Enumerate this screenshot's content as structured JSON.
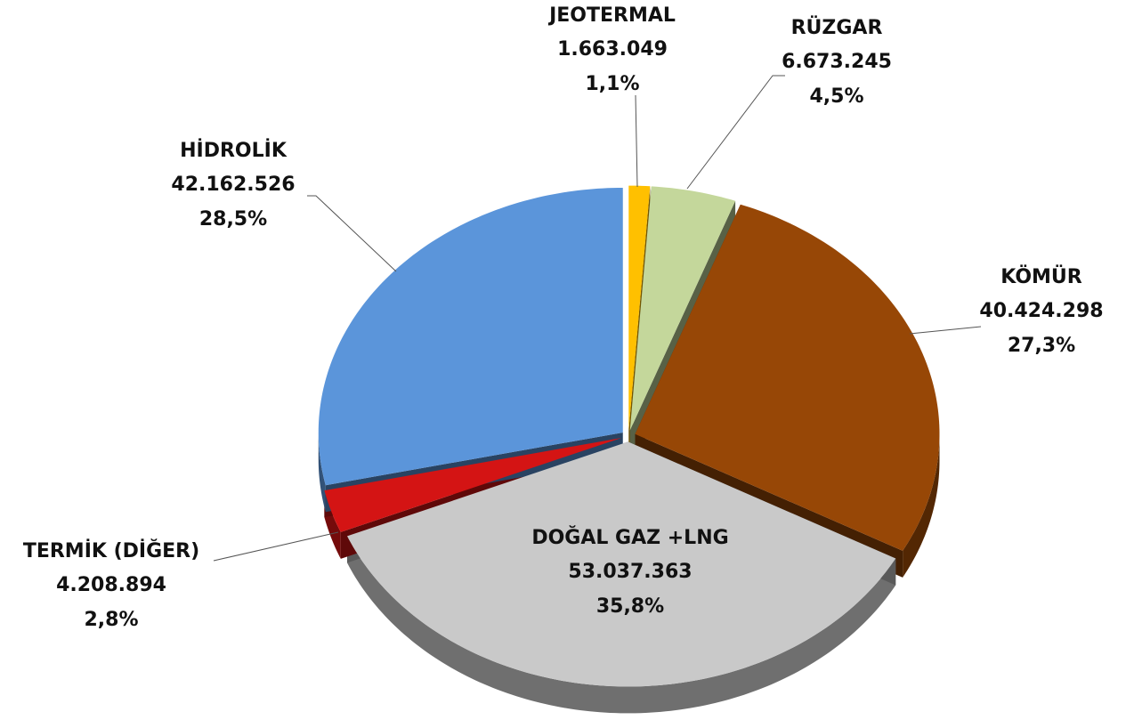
{
  "chart_data": {
    "type": "pie3d",
    "categories": [
      "JEOTERMAL",
      "RÜZGAR",
      "KÖMÜR",
      "DOĞAL GAZ +LNG",
      "TERMİK (DİĞER)",
      "HİDROLİK"
    ],
    "values": [
      1663049,
      6673245,
      40424298,
      53037363,
      4208894,
      42162526
    ],
    "value_labels": [
      "1.663.049",
      "6.673.245",
      "40.424.298",
      "53.037.363",
      "4.208.894",
      "42.162.526"
    ],
    "percent_labels": [
      "1,1%",
      "4,5%",
      "27,3%",
      "35,8%",
      "2,8%",
      "28,5%"
    ],
    "colors": [
      "#ffc000",
      "#c4d79b",
      "#974706",
      "#c9c9c9",
      "#d41414",
      "#5b95da"
    ]
  }
}
